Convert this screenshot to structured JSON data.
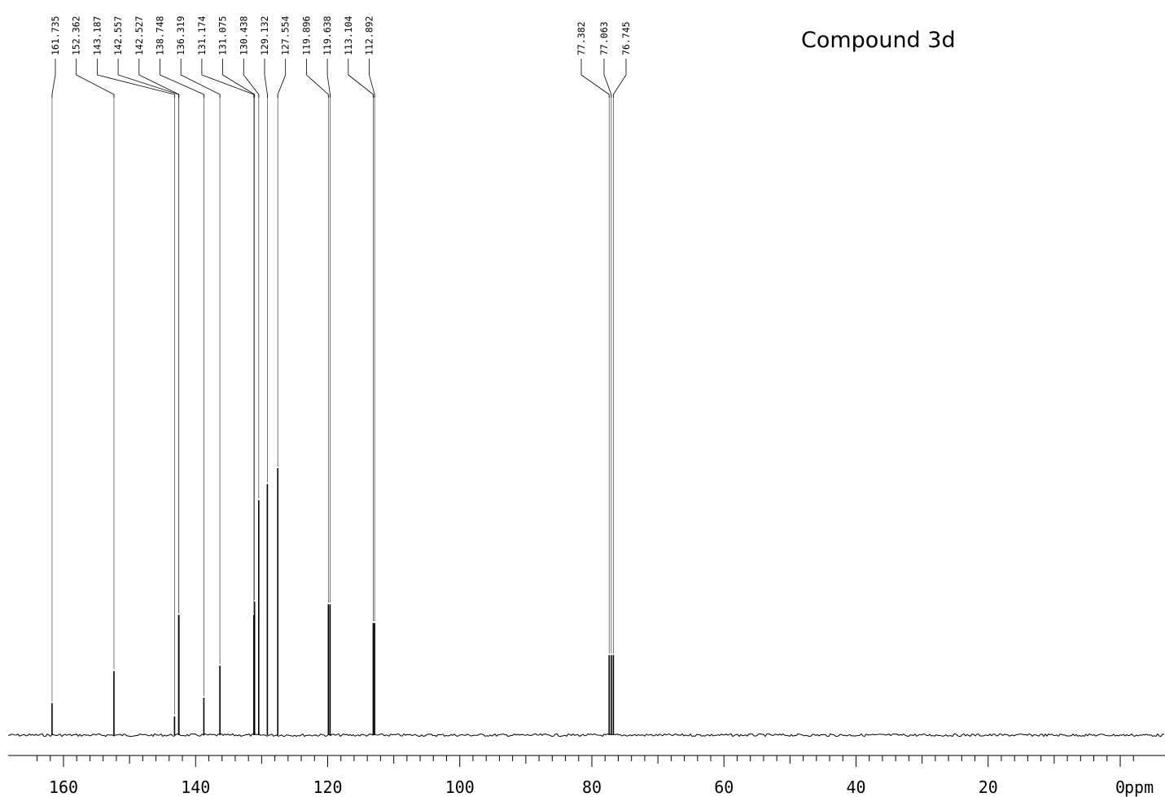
{
  "chart_data": {
    "type": "line",
    "title": "Compound 3d",
    "xlabel": "ppm",
    "x_reversed": true,
    "xlim": [
      164.8,
      -2.6
    ],
    "x_ticks": [
      160,
      140,
      120,
      100,
      80,
      60,
      40,
      20,
      0
    ],
    "x_tick_labels": [
      "160",
      "140",
      "120",
      "100",
      "80",
      "60",
      "40",
      "20",
      "0"
    ],
    "series": [
      {
        "peaks": [
          {
            "ppm": 161.735,
            "label": "161.735",
            "height": 0.12
          },
          {
            "ppm": 152.362,
            "label": "152.362",
            "height": 0.24
          },
          {
            "ppm": 143.187,
            "label": "143.187",
            "height": 0.07
          },
          {
            "ppm": 142.557,
            "label": "142.557",
            "height": 0.45
          },
          {
            "ppm": 142.527,
            "label": "142.527",
            "height": 0.45
          },
          {
            "ppm": 138.748,
            "label": "138.748",
            "height": 0.14
          },
          {
            "ppm": 136.319,
            "label": "136.319",
            "height": 0.26
          },
          {
            "ppm": 131.174,
            "label": "131.174",
            "height": 0.45
          },
          {
            "ppm": 131.075,
            "label": "131.075",
            "height": 0.5
          },
          {
            "ppm": 130.438,
            "label": "130.438",
            "height": 0.88
          },
          {
            "ppm": 129.132,
            "label": "129.132",
            "height": 0.94
          },
          {
            "ppm": 127.554,
            "label": "127.554",
            "height": 1.0
          },
          {
            "ppm": 119.896,
            "label": "119.896",
            "height": 0.49
          },
          {
            "ppm": 119.638,
            "label": "119.638",
            "height": 0.49
          },
          {
            "ppm": 113.104,
            "label": "113.104",
            "height": 0.42
          },
          {
            "ppm": 112.892,
            "label": "112.892",
            "height": 0.42
          },
          {
            "ppm": 77.382,
            "label": "77.382",
            "height": 0.3
          },
          {
            "ppm": 77.063,
            "label": "77.063",
            "height": 0.3
          },
          {
            "ppm": 76.745,
            "label": "76.745",
            "height": 0.3
          }
        ]
      }
    ],
    "grid": false
  }
}
